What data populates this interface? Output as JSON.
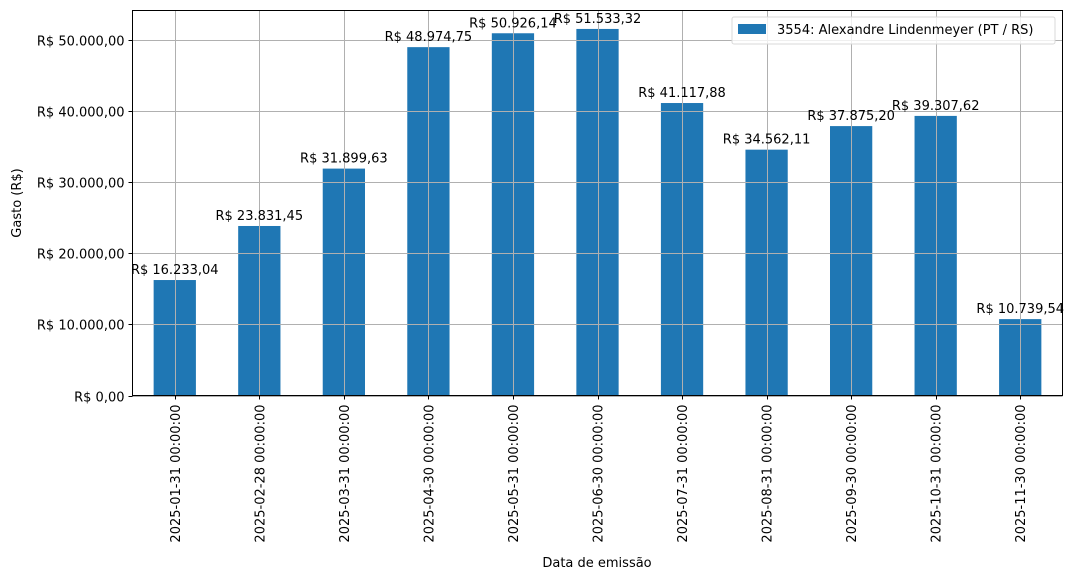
{
  "chart_data": {
    "type": "bar",
    "title": "",
    "xlabel": "Data de emissão",
    "ylabel": "Gasto (R$)",
    "ylim": [
      0,
      54126
    ],
    "grid": true,
    "legend_position": "upper right",
    "categories": [
      "2025-01-31 00:00:00",
      "2025-02-28 00:00:00",
      "2025-03-31 00:00:00",
      "2025-04-30 00:00:00",
      "2025-05-31 00:00:00",
      "2025-06-30 00:00:00",
      "2025-07-31 00:00:00",
      "2025-08-31 00:00:00",
      "2025-09-30 00:00:00",
      "2025-10-31 00:00:00",
      "2025-11-30 00:00:00"
    ],
    "series": [
      {
        "name": "3554: Alexandre Lindenmeyer (PT / RS)",
        "color": "#1f77b4",
        "values": [
          16233.04,
          23831.45,
          31899.63,
          48974.75,
          50926.14,
          51533.32,
          41117.88,
          34562.11,
          37875.2,
          39307.62,
          10739.54
        ],
        "labels": [
          "R$ 16.233,04",
          "R$ 23.831,45",
          "R$ 31.899,63",
          "R$ 48.974,75",
          "R$ 50.926,14",
          "R$ 51.533,32",
          "R$ 41.117,88",
          "R$ 34.562,11",
          "R$ 37.875,20",
          "R$ 39.307,62",
          "R$ 10.739,54"
        ]
      }
    ],
    "yticks": [
      0,
      10000,
      20000,
      30000,
      40000,
      50000
    ],
    "ytick_labels": [
      "R$ 0,00",
      "R$ 10.000,00",
      "R$ 20.000,00",
      "R$ 30.000,00",
      "R$ 40.000,00",
      "R$ 50.000,00"
    ]
  }
}
